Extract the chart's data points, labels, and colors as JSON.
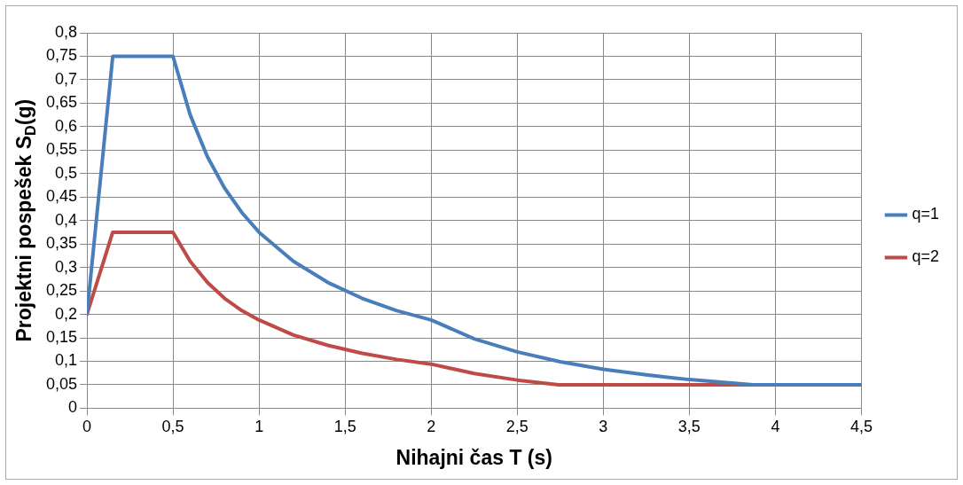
{
  "chart_data": {
    "type": "line",
    "xlabel": "Nihajni čas T (s)",
    "ylabel": "Projektni pospešek S$_{D}$(g)",
    "xlim": [
      0,
      4.5
    ],
    "xticks": [
      0,
      {
        "value": 0.5,
        "label": "0,5"
      },
      1,
      {
        "value": 1.5,
        "label": "1,5"
      },
      2,
      {
        "value": 2.5,
        "label": "2,5"
      },
      3,
      {
        "value": 3.5,
        "label": "3,5"
      },
      4,
      {
        "value": 4.5,
        "label": "4,5"
      }
    ],
    "ylim": [
      0,
      0.8
    ],
    "yticks": [
      0,
      {
        "value": 0.05,
        "label": "0,05"
      },
      {
        "value": 0.1,
        "label": "0,1"
      },
      {
        "value": 0.15,
        "label": "0,15"
      },
      {
        "value": 0.2,
        "label": "0,2"
      },
      {
        "value": 0.25,
        "label": "0,25"
      },
      {
        "value": 0.3,
        "label": "0,3"
      },
      {
        "value": 0.35,
        "label": "0,35"
      },
      {
        "value": 0.4,
        "label": "0,4"
      },
      {
        "value": 0.45,
        "label": "0,45"
      },
      {
        "value": 0.5,
        "label": "0,5"
      },
      {
        "value": 0.55,
        "label": "0,55"
      },
      {
        "value": 0.6,
        "label": "0,6"
      },
      {
        "value": 0.65,
        "label": "0,65"
      },
      {
        "value": 0.7,
        "label": "0,7"
      },
      {
        "value": 0.75,
        "label": "0,75"
      },
      {
        "value": 0.8,
        "label": "0,8"
      }
    ],
    "grid": true,
    "legend": "right",
    "marker": "none",
    "line_style": "solid",
    "series": [
      {
        "name": "q=1",
        "color": "#4a7ebb",
        "x": [
          0,
          0.15,
          0.5,
          0.6,
          0.7,
          0.8,
          0.9,
          1,
          1.2,
          1.4,
          1.6,
          1.8,
          2,
          2.25,
          2.5,
          2.75,
          3,
          3.25,
          3.5,
          3.87,
          4,
          4.5
        ],
        "values": [
          0.2,
          0.75,
          0.75,
          0.625,
          0.536,
          0.469,
          0.417,
          0.375,
          0.313,
          0.268,
          0.234,
          0.208,
          0.188,
          0.148,
          0.12,
          0.099,
          0.083,
          0.071,
          0.061,
          0.05,
          0.05,
          0.05
        ]
      },
      {
        "name": "q=2",
        "color": "#be4b48",
        "x": [
          0,
          0.15,
          0.5,
          0.6,
          0.7,
          0.8,
          0.9,
          1,
          1.2,
          1.4,
          1.6,
          1.8,
          2,
          2.25,
          2.5,
          2.74,
          3,
          4.5
        ],
        "values": [
          0.2,
          0.375,
          0.375,
          0.313,
          0.268,
          0.234,
          0.208,
          0.188,
          0.156,
          0.134,
          0.117,
          0.104,
          0.094,
          0.074,
          0.06,
          0.05,
          0.05,
          0.05
        ]
      }
    ]
  }
}
